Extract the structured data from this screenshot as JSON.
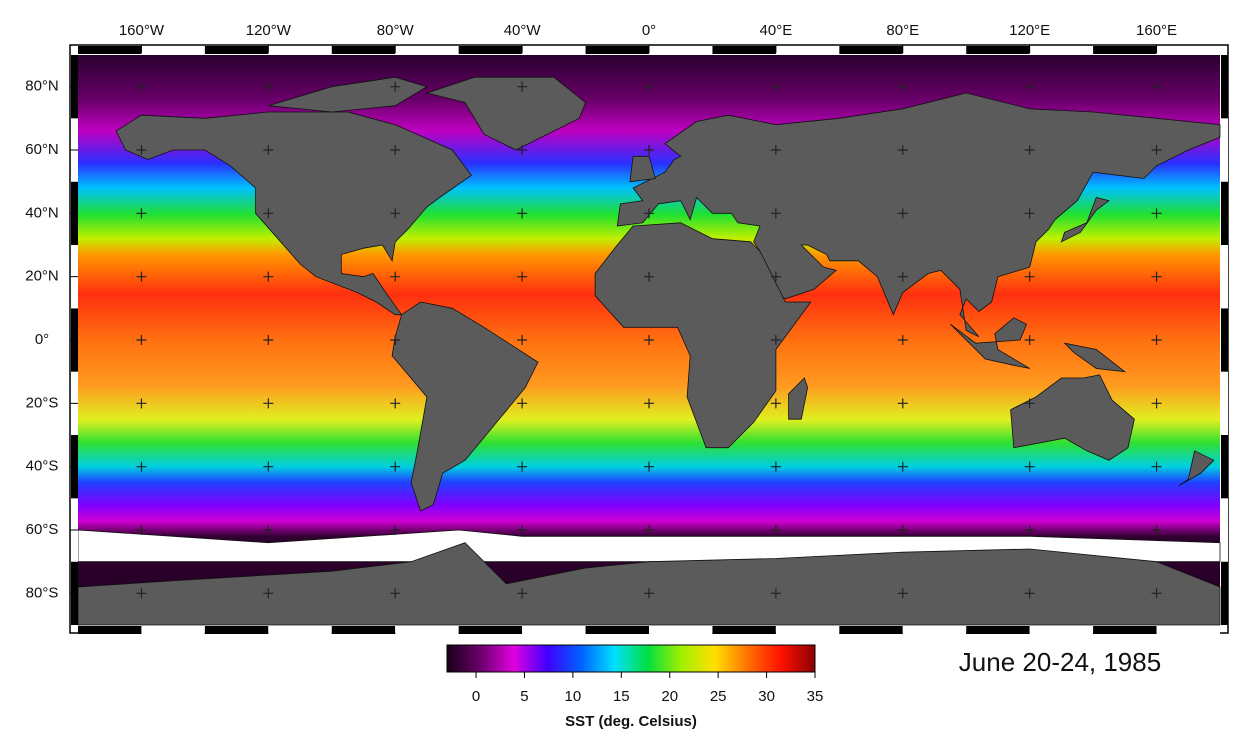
{
  "chart_data": {
    "type": "map",
    "xlim": [
      -180,
      180
    ],
    "ylim": [
      -90,
      90
    ],
    "xticks": [
      {
        "value": -160,
        "label": "160°W"
      },
      {
        "value": -120,
        "label": "120°W"
      },
      {
        "value": -80,
        "label": "80°W"
      },
      {
        "value": -40,
        "label": "40°W"
      },
      {
        "value": 0,
        "label": "0°"
      },
      {
        "value": 40,
        "label": "40°E"
      },
      {
        "value": 80,
        "label": "80°E"
      },
      {
        "value": 120,
        "label": "120°E"
      },
      {
        "value": 160,
        "label": "160°E"
      }
    ],
    "yticks": [
      {
        "value": 80,
        "label": "80°N"
      },
      {
        "value": 60,
        "label": "60°N"
      },
      {
        "value": 40,
        "label": "40°N"
      },
      {
        "value": 20,
        "label": "20°N"
      },
      {
        "value": 0,
        "label": "0°"
      },
      {
        "value": -20,
        "label": "20°S"
      },
      {
        "value": -40,
        "label": "40°S"
      },
      {
        "value": -60,
        "label": "60°S"
      },
      {
        "value": -80,
        "label": "80°S"
      }
    ],
    "grid": true,
    "colorbar": {
      "label": "SST (deg. Celsius)",
      "lim": [
        -3,
        35
      ],
      "ticks": [
        0,
        5,
        10,
        15,
        20,
        25,
        30,
        35
      ],
      "colors": [
        "#1a0018",
        "#6a006a",
        "#e000e0",
        "#4000ff",
        "#0060ff",
        "#00e0ff",
        "#00e040",
        "#a0f000",
        "#ffe000",
        "#ff7000",
        "#ff1000",
        "#8a0000"
      ]
    },
    "annotation": "June 20-24, 1985"
  }
}
